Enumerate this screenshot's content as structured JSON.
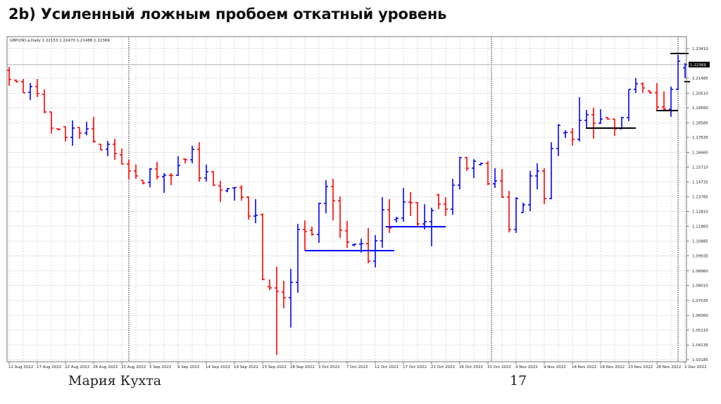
{
  "slide": {
    "title": "2b) Усиленный ложным пробоем откатный уровень",
    "author": "Мария Кухта",
    "page_number": "17"
  },
  "chart_data": {
    "type": "ohlc",
    "header": "GBPUSD.a,Daily  1.22153 1.22470 1.21488 1.22369",
    "symbol": "GBPUSD.a",
    "timeframe": "Daily",
    "current_price": "1.22369",
    "colors": {
      "up": "#0000ff",
      "down": "#ff0000",
      "grid": "#c8c8c8",
      "level_line_1": "#0000ff",
      "level_line_2": "#000000"
    },
    "grid": true,
    "ylim": [
      1.03185,
      1.2341
    ],
    "y_ticks": [
      "1.23410",
      "1.21485",
      "1.20510",
      "1.19560",
      "1.18585",
      "1.17635",
      "1.16660",
      "1.15710",
      "1.14735",
      "1.13785",
      "1.12810",
      "1.11860",
      "1.10885",
      "1.09935",
      "1.08960",
      "1.08010",
      "1.07035",
      "1.06060",
      "1.05110",
      "1.04135",
      "1.03185"
    ],
    "x_ticks": [
      "12 Aug 2022",
      "17 Aug 2022",
      "22 Aug 2022",
      "26 Aug 2022",
      "31 Aug 2022",
      "5 Sep 2022",
      "9 Sep 2022",
      "14 Sep 2022",
      "19 Sep 2022",
      "23 Sep 2022",
      "28 Sep 2022",
      "3 Oct 2022",
      "7 Oct 2022",
      "12 Oct 2022",
      "17 Oct 2022",
      "21 Oct 2022",
      "26 Oct 2022",
      "31 Oct 2022",
      "4 Nov 2022",
      "9 Nov 2022",
      "14 Nov 2022",
      "18 Nov 2022",
      "23 Nov 2022",
      "28 Nov 2022",
      "2 Dec 2022"
    ],
    "bars_ohlc": [
      [
        1.2199,
        1.2222,
        1.2098,
        1.214
      ],
      [
        1.2135,
        1.214,
        1.2121,
        1.2126
      ],
      [
        1.2126,
        1.2144,
        1.2053,
        1.2053
      ],
      [
        1.2057,
        1.2117,
        1.2007,
        1.2094
      ],
      [
        1.2094,
        1.2144,
        1.2025,
        1.2048
      ],
      [
        1.2043,
        1.2076,
        1.192,
        1.1929
      ],
      [
        1.1929,
        1.1929,
        1.1787,
        1.1824
      ],
      [
        1.1819,
        1.1822,
        1.181,
        1.1815
      ],
      [
        1.1833,
        1.1833,
        1.1737,
        1.1764
      ],
      [
        1.1764,
        1.1874,
        1.1709,
        1.1824
      ],
      [
        1.1828,
        1.1828,
        1.1755,
        1.1792
      ],
      [
        1.1792,
        1.1865,
        1.1778,
        1.1819
      ],
      [
        1.1819,
        1.1897,
        1.1728,
        1.1737
      ],
      [
        1.1719,
        1.1719,
        1.1682,
        1.1682
      ],
      [
        1.1686,
        1.1741,
        1.1641,
        1.1719
      ],
      [
        1.1719,
        1.1755,
        1.1618,
        1.1659
      ],
      [
        1.165,
        1.1691,
        1.159,
        1.159
      ],
      [
        1.159,
        1.1618,
        1.149,
        1.1545
      ],
      [
        1.1545,
        1.1586,
        1.1494,
        1.1513
      ],
      [
        1.1485,
        1.1485,
        1.1458,
        1.1467
      ],
      [
        1.1471,
        1.1563,
        1.1439,
        1.1558
      ],
      [
        1.1558,
        1.1604,
        1.149,
        1.1508
      ],
      [
        1.1508,
        1.1531,
        1.1403,
        1.1517
      ],
      [
        1.1517,
        1.1531,
        1.1453,
        1.1515
      ],
      [
        1.1517,
        1.1641,
        1.1513,
        1.1581
      ],
      [
        1.1622,
        1.1627,
        1.1595,
        1.1618
      ],
      [
        1.1618,
        1.1709,
        1.1595,
        1.1686
      ],
      [
        1.1686,
        1.1732,
        1.1476,
        1.1499
      ],
      [
        1.1499,
        1.1586,
        1.1476,
        1.154
      ],
      [
        1.154,
        1.1545,
        1.1448,
        1.1453
      ],
      [
        1.1448,
        1.1481,
        1.1343,
        1.1421
      ],
      [
        1.1416,
        1.1435,
        1.1407,
        1.143
      ],
      [
        1.1435,
        1.1439,
        1.1352,
        1.1437
      ],
      [
        1.1437,
        1.1453,
        1.1352,
        1.1375
      ],
      [
        1.1375,
        1.138,
        1.1229,
        1.1252
      ],
      [
        1.1252,
        1.1362,
        1.1206,
        1.1257
      ],
      [
        1.1261,
        1.127,
        1.0835,
        1.084
      ],
      [
        1.0794,
        1.084,
        1.0771,
        1.0785
      ],
      [
        1.0785,
        1.0922,
        1.035,
        1.0762
      ],
      [
        1.0757,
        1.0831,
        1.0652,
        1.0721
      ],
      [
        1.0721,
        1.0908,
        1.0528,
        1.0821
      ],
      [
        1.0821,
        1.1201,
        1.0753,
        1.1165
      ],
      [
        1.1165,
        1.1224,
        1.1027,
        1.1151
      ],
      [
        1.116,
        1.1183,
        1.1124,
        1.1133
      ],
      [
        1.1133,
        1.1339,
        1.1078,
        1.1334
      ],
      [
        1.1334,
        1.1485,
        1.127,
        1.1444
      ],
      [
        1.1444,
        1.1494,
        1.1224,
        1.1352
      ],
      [
        1.1352,
        1.138,
        1.111,
        1.116
      ],
      [
        1.1156,
        1.122,
        1.1046,
        1.1082
      ],
      [
        1.1064,
        1.1073,
        1.1055,
        1.1069
      ],
      [
        1.1069,
        1.1105,
        1.1014,
        1.1073
      ],
      [
        1.1073,
        1.1174,
        1.0945,
        1.0959
      ],
      [
        1.0959,
        1.1128,
        1.0918,
        1.1091
      ],
      [
        1.1091,
        1.1375,
        1.1046,
        1.1293
      ],
      [
        1.1293,
        1.1362,
        1.1142,
        1.1174
      ],
      [
        1.1229,
        1.1247,
        1.121,
        1.1238
      ],
      [
        1.1238,
        1.1435,
        1.1215,
        1.1343
      ],
      [
        1.1343,
        1.1407,
        1.1252,
        1.1339
      ],
      [
        1.1339,
        1.1343,
        1.1178,
        1.1201
      ],
      [
        1.1201,
        1.1329,
        1.1165,
        1.1215
      ],
      [
        1.1215,
        1.1307,
        1.1055,
        1.1288
      ],
      [
        1.1389,
        1.1398,
        1.1297,
        1.1329
      ],
      [
        1.1329,
        1.1375,
        1.1252,
        1.1297
      ],
      [
        1.1297,
        1.1494,
        1.1261,
        1.1453
      ],
      [
        1.1453,
        1.1636,
        1.1426,
        1.1632
      ],
      [
        1.1632,
        1.1636,
        1.1545,
        1.1563
      ],
      [
        1.1563,
        1.1622,
        1.1499,
        1.1609
      ],
      [
        1.1586,
        1.16,
        1.1581,
        1.1595
      ],
      [
        1.1595,
        1.1609,
        1.1453,
        1.1462
      ],
      [
        1.1462,
        1.1563,
        1.1435,
        1.1481
      ],
      [
        1.1481,
        1.1558,
        1.1371,
        1.1375
      ],
      [
        1.1375,
        1.1416,
        1.1146,
        1.1165
      ],
      [
        1.1165,
        1.1375,
        1.1142,
        1.1366
      ],
      [
        1.1275,
        1.1339,
        1.1275,
        1.1325
      ],
      [
        1.1325,
        1.1545,
        1.1284,
        1.1513
      ],
      [
        1.1513,
        1.1595,
        1.1426,
        1.1545
      ],
      [
        1.1545,
        1.1563,
        1.1329,
        1.1366
      ],
      [
        1.1366,
        1.1732,
        1.1362,
        1.1691
      ],
      [
        1.1691,
        1.1851,
        1.1641,
        1.1842
      ],
      [
        1.1792,
        1.181,
        1.176,
        1.1796
      ],
      [
        1.1796,
        1.1824,
        1.1709,
        1.1751
      ],
      [
        1.1751,
        1.2025,
        1.1737,
        1.1874
      ],
      [
        1.1874,
        1.1943,
        1.1824,
        1.1911
      ],
      [
        1.1911,
        1.1957,
        1.1755,
        1.1856
      ],
      [
        1.1856,
        1.1947,
        1.1851,
        1.1883
      ],
      [
        1.1892,
        1.1895,
        1.1878,
        1.1883
      ],
      [
        1.1883,
        1.1885,
        1.1773,
        1.1819
      ],
      [
        1.1819,
        1.1897,
        1.1819,
        1.1892
      ],
      [
        1.1892,
        1.2076,
        1.1869,
        1.2076
      ],
      [
        1.2076,
        1.2149,
        1.2053,
        1.2112
      ],
      [
        1.2112,
        1.2121,
        1.2053,
        1.2085
      ],
      [
        1.2066,
        1.2068,
        1.2048,
        1.2053
      ],
      [
        1.2053,
        1.2117,
        1.1943,
        1.1961
      ],
      [
        1.1961,
        1.2062,
        1.1938,
        1.1947
      ],
      [
        1.1947,
        1.2094,
        1.1897,
        1.2076
      ],
      [
        1.2076,
        1.23,
        1.2071,
        1.2259
      ],
      [
        1.22153,
        1.2247,
        1.21488,
        1.22369
      ]
    ],
    "level_lines": [
      {
        "price": 1.1027,
        "from_bar": 42,
        "to_bar": 54.7,
        "color": "#0000ff"
      },
      {
        "price": 1.1183,
        "from_bar": 53.5,
        "to_bar": 62,
        "color": "#0000ff"
      },
      {
        "price": 1.1824,
        "from_bar": 81.9,
        "to_bar": 89,
        "color": "#000000"
      },
      {
        "price": 1.1938,
        "from_bar": 91.9,
        "to_bar": 95,
        "color": "#000000"
      },
      {
        "price": 1.2309,
        "from_bar": 93.9,
        "to_bar": 96.5,
        "color": "#000000"
      },
      {
        "price": 1.2126,
        "from_bar": 95.9,
        "to_bar": 96.7,
        "color": "#000000"
      }
    ],
    "period_separators_bar": [
      17,
      68.5,
      95
    ]
  }
}
